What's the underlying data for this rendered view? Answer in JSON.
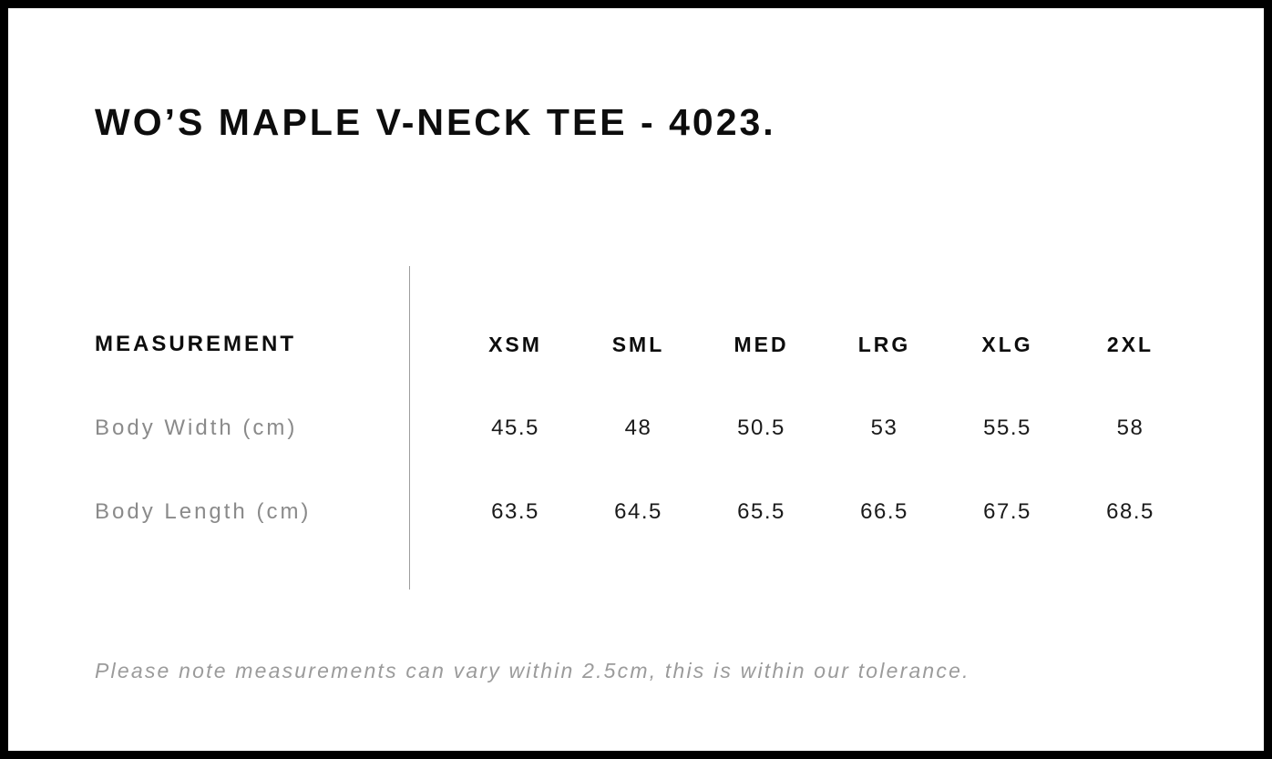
{
  "page": {
    "title": "WO’S MAPLE V-NECK TEE - 4023."
  },
  "table": {
    "label_header": "MEASUREMENT",
    "size_headers": [
      "XSM",
      "SML",
      "MED",
      "LRG",
      "XLG",
      "2XL"
    ],
    "rows": [
      {
        "label": "Body Width (cm)",
        "values": [
          "45.5",
          "48",
          "50.5",
          "53",
          "55.5",
          "58"
        ]
      },
      {
        "label": "Body Length (cm)",
        "values": [
          "63.5",
          "64.5",
          "65.5",
          "66.5",
          "67.5",
          "68.5"
        ]
      }
    ]
  },
  "note": "Please note measurements can vary within 2.5cm, this is within our tolerance.",
  "colors": {
    "border": "#000000",
    "heading_text": "#0d0d0d",
    "value_text": "#1a1a1a",
    "row_label_text": "#8a8a8a",
    "note_text": "#9b9b9b",
    "divider": "#9e9e9e",
    "background": "#ffffff"
  }
}
